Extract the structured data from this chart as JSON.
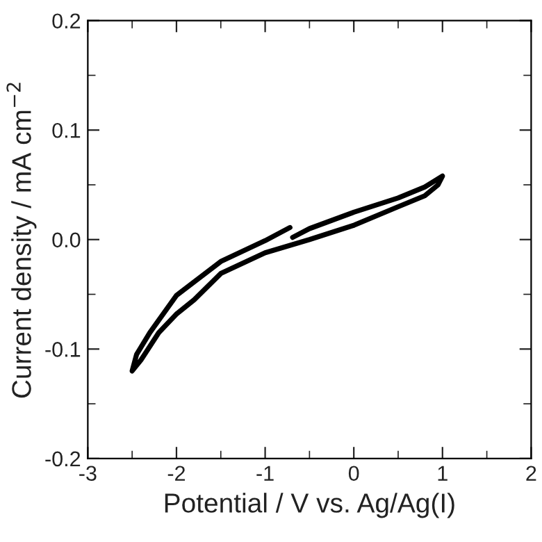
{
  "chart_data": {
    "type": "line",
    "xlabel": "Potential / V vs. Ag/Ag(I)",
    "ylabel": "Current density / mA cm$^{−2}$",
    "series": [
      {
        "color": "#000000",
        "x": [
          -0.69,
          -0.5,
          0,
          0.5,
          0.8,
          1.0,
          0.95,
          0.8,
          0.5,
          0,
          -0.5,
          -1,
          -1.5,
          -1.8,
          -2.0,
          -2.2,
          -2.4,
          -2.5,
          -2.45,
          -2.3,
          -2.0,
          -1.5,
          -1.0,
          -0.72
        ],
        "values": [
          0.002,
          0.01,
          0.025,
          0.038,
          0.048,
          0.058,
          0.05,
          0.04,
          0.03,
          0.013,
          0.0,
          -0.012,
          -0.031,
          -0.055,
          -0.068,
          -0.085,
          -0.11,
          -0.12,
          -0.105,
          -0.085,
          -0.051,
          -0.02,
          -0.001,
          0.011
        ]
      }
    ],
    "xlim": [
      -3,
      2
    ],
    "xticks": [
      -3,
      -2,
      -1,
      0,
      1,
      2
    ],
    "ylim": [
      -0.2,
      0.2
    ],
    "yticks": [
      {
        "value": -0.2,
        "label": "-0.2"
      },
      {
        "value": -0.1,
        "label": "-0.1"
      },
      {
        "value": 0.0,
        "label": "0.0"
      },
      {
        "value": 0.1,
        "label": "0.1"
      },
      {
        "value": 0.2,
        "label": "0.2"
      }
    ],
    "grid": false,
    "legend": false,
    "marker": "none",
    "line_style": "solid"
  }
}
